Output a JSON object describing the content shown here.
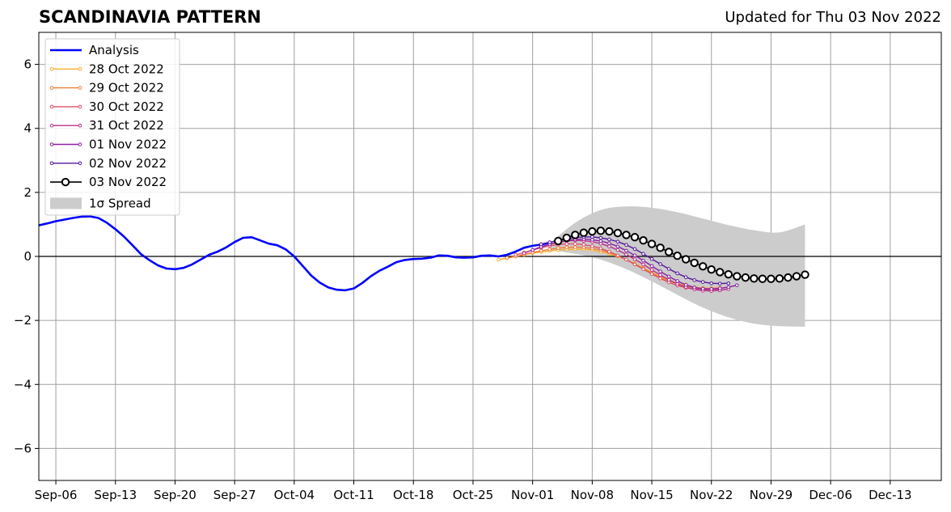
{
  "chart_data": {
    "type": "line",
    "title": "SCANDINAVIA PATTERN",
    "subtitle": "Updated for Thu 03 Nov 2022",
    "xlabel": "",
    "ylabel": "",
    "ylim": [
      -7,
      7
    ],
    "yticks": [
      -6,
      -4,
      -2,
      0,
      2,
      4,
      6
    ],
    "ytick_labels": [
      "−6",
      "−4",
      "−2",
      "0",
      "2",
      "4",
      "6"
    ],
    "xlim": [
      "2022-09-04",
      "2022-12-19"
    ],
    "xticks": [
      "2022-09-06",
      "2022-09-13",
      "2022-09-20",
      "2022-09-27",
      "2022-10-04",
      "2022-10-11",
      "2022-10-18",
      "2022-10-25",
      "2022-11-01",
      "2022-11-08",
      "2022-11-15",
      "2022-11-22",
      "2022-11-29",
      "2022-12-06",
      "2022-12-13"
    ],
    "xtick_labels": [
      "Sep-06",
      "Sep-13",
      "Sep-20",
      "Sep-27",
      "Oct-04",
      "Oct-11",
      "Oct-18",
      "Oct-25",
      "Nov-01",
      "Nov-08",
      "Nov-15",
      "Nov-22",
      "Nov-29",
      "Dec-06",
      "Dec-13"
    ],
    "grid": true,
    "legend_position": "top-left",
    "zero_line": true,
    "analysis": {
      "name": "Analysis",
      "color": "#0000ff",
      "start_date": "2022-09-04",
      "values": [
        0.97,
        1.03,
        1.1,
        1.15,
        1.2,
        1.24,
        1.25,
        1.2,
        1.05,
        0.85,
        0.62,
        0.35,
        0.07,
        -0.12,
        -0.28,
        -0.38,
        -0.4,
        -0.36,
        -0.25,
        -0.1,
        0.05,
        0.15,
        0.28,
        0.45,
        0.58,
        0.6,
        0.5,
        0.4,
        0.35,
        0.22,
        0.0,
        -0.3,
        -0.6,
        -0.82,
        -0.97,
        -1.04,
        -1.06,
        -1.0,
        -0.83,
        -0.62,
        -0.45,
        -0.32,
        -0.18,
        -0.11,
        -0.08,
        -0.07,
        -0.04,
        0.03,
        0.02,
        -0.03,
        -0.04,
        -0.03,
        0.02,
        0.03,
        0.0,
        0.05,
        0.15,
        0.27,
        0.33,
        0.37,
        0.43
      ]
    },
    "forecasts": [
      {
        "name": "28 Oct 2022",
        "color": "#f6ad30",
        "start_date": "2022-10-28",
        "values": [
          -0.1,
          -0.05,
          0.0,
          0.05,
          0.1,
          0.14,
          0.17,
          0.2,
          0.22,
          0.23,
          0.23,
          0.2,
          0.15,
          0.08,
          0.0,
          -0.1,
          -0.22,
          -0.36,
          -0.5,
          -0.63,
          -0.75,
          -0.84,
          -0.91,
          -0.96,
          -0.99,
          -1.0,
          -1.0
        ]
      },
      {
        "name": "29 Oct 2022",
        "color": "#ef7d3b",
        "start_date": "2022-10-29",
        "values": [
          -0.05,
          0.0,
          0.06,
          0.12,
          0.18,
          0.22,
          0.26,
          0.28,
          0.29,
          0.28,
          0.25,
          0.2,
          0.12,
          0.02,
          -0.1,
          -0.24,
          -0.38,
          -0.52,
          -0.65,
          -0.77,
          -0.86,
          -0.93,
          -0.98,
          -1.0,
          -1.0,
          -0.98
        ]
      },
      {
        "name": "30 Oct 2022",
        "color": "#da5267",
        "start_date": "2022-10-30",
        "values": [
          0.05,
          0.12,
          0.2,
          0.27,
          0.33,
          0.37,
          0.39,
          0.39,
          0.37,
          0.32,
          0.25,
          0.15,
          0.03,
          -0.1,
          -0.25,
          -0.4,
          -0.55,
          -0.69,
          -0.81,
          -0.91,
          -0.98,
          -1.02,
          -1.04,
          -1.04,
          -1.02
        ]
      },
      {
        "name": "31 Oct 2022",
        "color": "#b83289",
        "start_date": "2022-10-31",
        "values": [
          0.1,
          0.2,
          0.3,
          0.38,
          0.44,
          0.48,
          0.5,
          0.49,
          0.46,
          0.4,
          0.31,
          0.2,
          0.06,
          -0.09,
          -0.25,
          -0.42,
          -0.58,
          -0.73,
          -0.86,
          -0.96,
          -1.03,
          -1.07,
          -1.08,
          -1.06,
          -1.02
        ]
      },
      {
        "name": "01 Nov 2022",
        "color": "#8a1fa6",
        "start_date": "2022-11-01",
        "values": [
          0.2,
          0.3,
          0.38,
          0.45,
          0.5,
          0.53,
          0.54,
          0.52,
          0.48,
          0.41,
          0.31,
          0.18,
          0.03,
          -0.13,
          -0.3,
          -0.47,
          -0.63,
          -0.77,
          -0.89,
          -0.97,
          -1.01,
          -1.02,
          -1.0,
          -0.96,
          -0.9
        ]
      },
      {
        "name": "02 Nov 2022",
        "color": "#53159b",
        "start_date": "2022-11-02",
        "values": [
          0.38,
          0.44,
          0.5,
          0.55,
          0.59,
          0.61,
          0.61,
          0.58,
          0.53,
          0.46,
          0.36,
          0.23,
          0.08,
          -0.08,
          -0.24,
          -0.39,
          -0.53,
          -0.65,
          -0.74,
          -0.8,
          -0.84,
          -0.85,
          -0.84
        ]
      }
    ],
    "latest": {
      "name": "03 Nov 2022",
      "color": "#000000",
      "start_date": "2022-11-04",
      "values": [
        0.48,
        0.58,
        0.67,
        0.74,
        0.78,
        0.8,
        0.78,
        0.73,
        0.67,
        0.6,
        0.5,
        0.39,
        0.27,
        0.14,
        0.02,
        -0.09,
        -0.2,
        -0.31,
        -0.41,
        -0.49,
        -0.56,
        -0.62,
        -0.66,
        -0.69,
        -0.7,
        -0.7,
        -0.69,
        -0.66,
        -0.62,
        -0.57
      ]
    },
    "spread": {
      "name": "1σ Spread",
      "color": "#cccccc",
      "start_date": "2022-11-03",
      "end_date": "2022-12-03",
      "upper": [
        [
          0,
          0.4
        ],
        [
          3,
          1.05
        ],
        [
          6,
          1.45
        ],
        [
          9,
          1.56
        ],
        [
          12,
          1.52
        ],
        [
          15,
          1.38
        ],
        [
          18,
          1.18
        ],
        [
          21,
          0.98
        ],
        [
          24,
          0.82
        ],
        [
          27,
          0.75
        ],
        [
          30,
          1.0
        ]
      ],
      "lower": [
        [
          0,
          0.2
        ],
        [
          3,
          0.08
        ],
        [
          6,
          -0.1
        ],
        [
          9,
          -0.4
        ],
        [
          12,
          -0.78
        ],
        [
          15,
          -1.2
        ],
        [
          18,
          -1.6
        ],
        [
          21,
          -1.9
        ],
        [
          24,
          -2.1
        ],
        [
          27,
          -2.18
        ],
        [
          30,
          -2.2
        ]
      ]
    }
  }
}
